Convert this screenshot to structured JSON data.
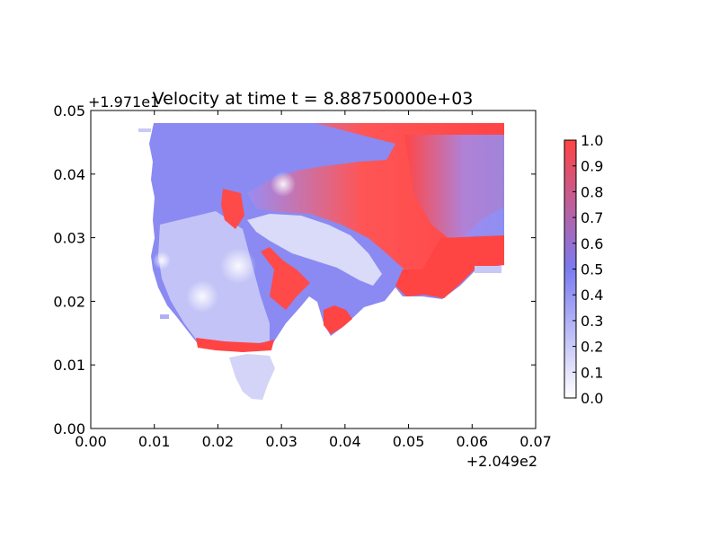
{
  "chart_data": {
    "type": "heatmap",
    "title": "Velocity at time t = 8.88750000e+03",
    "xlabel": "",
    "ylabel": "",
    "x_offset_label": "+2.049e2",
    "y_offset_label": "+1.971e1",
    "xlim": [
      0.0,
      0.07
    ],
    "ylim": [
      0.0,
      0.05
    ],
    "x_ticks": [
      "0.00",
      "0.01",
      "0.02",
      "0.03",
      "0.04",
      "0.05",
      "0.06",
      "0.07"
    ],
    "y_ticks": [
      "0.00",
      "0.01",
      "0.02",
      "0.03",
      "0.04",
      "0.05"
    ],
    "colorbar": {
      "range": [
        0.0,
        1.0
      ],
      "ticks": [
        "0.0",
        "0.1",
        "0.2",
        "0.3",
        "0.4",
        "0.5",
        "0.6",
        "0.7",
        "0.8",
        "0.9",
        "1.0"
      ],
      "colormap": [
        "#ffffff",
        "#7b7bf0",
        "#ff4444"
      ]
    },
    "grid": false,
    "legend": "colorbar-right"
  }
}
